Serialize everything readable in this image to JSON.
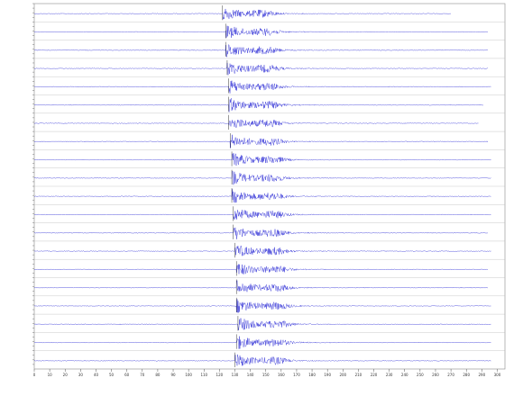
{
  "chart_data": {
    "type": "line",
    "color": "#1010d0",
    "xlim": [
      0,
      305
    ],
    "xticks": [
      0,
      10,
      20,
      30,
      40,
      50,
      60,
      70,
      80,
      90,
      100,
      110,
      120,
      130,
      140,
      150,
      160,
      170,
      180,
      190,
      200,
      210,
      220,
      230,
      240,
      250,
      260,
      270,
      280,
      290,
      300
    ],
    "series": [
      {
        "onset": 122,
        "end": 270
      },
      {
        "onset": 124,
        "end": 294
      },
      {
        "onset": 124,
        "end": 294
      },
      {
        "onset": 125,
        "end": 294
      },
      {
        "onset": 126,
        "end": 296
      },
      {
        "onset": 126,
        "end": 291
      },
      {
        "onset": 126,
        "end": 288
      },
      {
        "onset": 127,
        "end": 294
      },
      {
        "onset": 128,
        "end": 296
      },
      {
        "onset": 128,
        "end": 296
      },
      {
        "onset": 128,
        "end": 296
      },
      {
        "onset": 129,
        "end": 296
      },
      {
        "onset": 129,
        "end": 294
      },
      {
        "onset": 130,
        "end": 296
      },
      {
        "onset": 131,
        "end": 294
      },
      {
        "onset": 131,
        "end": 294
      },
      {
        "onset": 131,
        "end": 296
      },
      {
        "onset": 132,
        "end": 296
      },
      {
        "onset": 131,
        "end": 296
      },
      {
        "onset": 130,
        "end": 296
      }
    ]
  }
}
